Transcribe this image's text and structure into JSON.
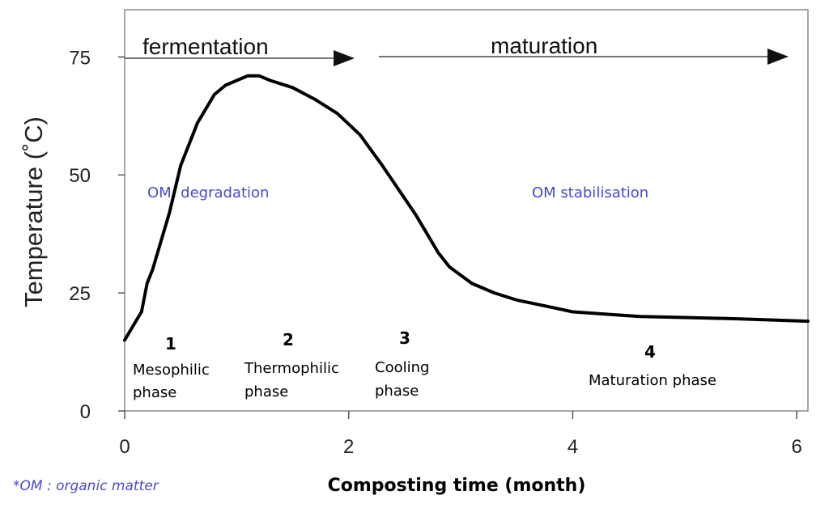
{
  "chart_data": {
    "type": "line",
    "xlabel": "Composting time (month)",
    "ylabel": "Temperature (˚C)",
    "xlim": [
      0,
      6.1
    ],
    "ylim": [
      0,
      85
    ],
    "x_ticks": [
      "0",
      "2",
      "4",
      "6"
    ],
    "y_ticks": [
      "0",
      "25",
      "50",
      "75"
    ],
    "grid": false,
    "series": [
      {
        "x": [
          0,
          0.1,
          0.15,
          0.2,
          0.25,
          0.3,
          0.4,
          0.5,
          0.65,
          0.8,
          0.9,
          1.0,
          1.1,
          1.2,
          1.3,
          1.5,
          1.7,
          1.9,
          2.1,
          2.3,
          2.5,
          2.6,
          2.7,
          2.8,
          2.9,
          3.1,
          3.3,
          3.5,
          3.8,
          4.0,
          4.3,
          4.6,
          5.0,
          5.5,
          6.1
        ],
        "y": [
          15,
          19,
          21,
          27,
          30,
          34,
          42,
          52,
          61,
          67,
          69,
          70,
          71,
          71,
          70,
          68.5,
          66,
          63,
          58.5,
          52,
          45,
          41.5,
          37.5,
          33.5,
          30.5,
          27,
          25,
          23.5,
          22,
          21,
          20.5,
          20,
          19.8,
          19.5,
          19
        ]
      }
    ]
  },
  "stages": {
    "fermentation": "fermentation",
    "maturation": "maturation"
  },
  "annotations": {
    "om_degradation": "OM  degradation",
    "om_stabilisation": "OM stabilisation"
  },
  "phases": [
    {
      "number": "1",
      "line1": "Mesophilic",
      "line2": "phase"
    },
    {
      "number": "2",
      "line1": "Thermophilic",
      "line2": "phase"
    },
    {
      "number": "3",
      "line1": "Cooling",
      "line2": "phase"
    },
    {
      "number": "4",
      "line1": "Maturation phase",
      "line2": ""
    }
  ],
  "footnote": "*OM : organic matter"
}
